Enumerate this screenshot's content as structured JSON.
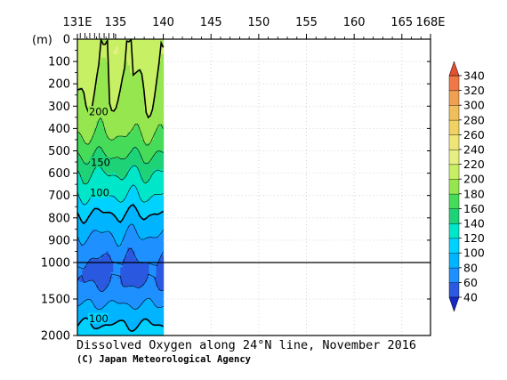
{
  "chart_data": {
    "type": "heatmap",
    "title": "Dissolved Oxygen along 24°N line, November 2016",
    "credit": "(C) Japan Meteorological Agency",
    "ylabel": "(m)",
    "x_ticks": [
      "131E",
      "135",
      "140",
      "145",
      "150",
      "155",
      "160",
      "165",
      "168E"
    ],
    "x_tick_values": [
      131,
      135,
      140,
      145,
      150,
      155,
      160,
      165,
      168
    ],
    "x_range": [
      131,
      168
    ],
    "y_ticks_upper": [
      "0",
      "100",
      "200",
      "300",
      "400",
      "500",
      "600",
      "700",
      "800",
      "900",
      "1000"
    ],
    "y_ticks_lower": [
      "1500",
      "2000"
    ],
    "y_range": [
      0,
      2000
    ],
    "y_break": 1000,
    "data_extent_lon": [
      131,
      140
    ],
    "station_ticks_lon": [
      131.3,
      131.8,
      132.3,
      132.8,
      133.3,
      133.8,
      134.3,
      134.8
    ],
    "contour_labels": [
      "200",
      "150",
      "100",
      "100"
    ],
    "colorbar_labels": [
      "40",
      "60",
      "80",
      "100",
      "120",
      "140",
      "160",
      "180",
      "200",
      "220",
      "240",
      "260",
      "280",
      "300",
      "320",
      "340"
    ],
    "colorbar_levels": [
      40,
      60,
      80,
      100,
      120,
      140,
      160,
      180,
      200,
      220,
      240,
      260,
      280,
      300,
      320,
      340
    ],
    "colorbar_colors": [
      "#2b59e0",
      "#1e90ff",
      "#00b4ff",
      "#00d2ff",
      "#00e6c8",
      "#1ed278",
      "#46dc5a",
      "#96e650",
      "#c8f064",
      "#e6f082",
      "#f0e678",
      "#f0d264",
      "#f0be5a",
      "#f0a050",
      "#f07846",
      "#e65032"
    ],
    "colorbar_under_color": "#1428c8",
    "colorbar_over_color": "#e65032",
    "profile_depths": [
      0,
      50,
      100,
      200,
      300,
      400,
      500,
      600,
      700,
      800,
      900,
      1000,
      1100,
      1200,
      1300,
      1400,
      1500,
      1600,
      1700,
      1800,
      1900,
      2000
    ],
    "profile_values": [
      205,
      212,
      205,
      200,
      195,
      185,
      165,
      140,
      120,
      95,
      75,
      58,
      55,
      56,
      60,
      66,
      75,
      82,
      90,
      97,
      103,
      110
    ]
  }
}
